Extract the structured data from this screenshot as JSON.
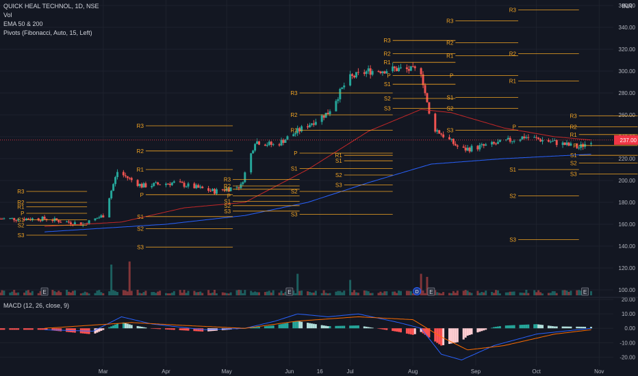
{
  "header": {
    "symbol_line": "QUICK HEAL TECHNOL, 1D, NSE",
    "indicators": [
      "Vol",
      "EMA 50 & 200",
      "Pivots (Fibonacci, Auto, 15, Left)"
    ],
    "currency": "INR"
  },
  "macd_label": "MACD (12, 26, close, 9)",
  "colors": {
    "background": "#131722",
    "up": "#26a69a",
    "down": "#ef5350",
    "ema50": "#c62828",
    "ema200": "#2962ff",
    "pivot": "#f5a623",
    "macd_line": "#2962ff",
    "signal_line": "#ff6d00",
    "price_tag": "#f23645"
  },
  "chart_data": {
    "type": "candlestick",
    "symbol": "QUICK HEAL TECHNOL",
    "interval": "1D",
    "exchange": "NSE",
    "current_price_label": "237.00",
    "ylim": [
      95,
      365
    ],
    "y_ticks": [
      "100.00",
      "120.00",
      "140.00",
      "160.00",
      "180.00",
      "200.00",
      "220.00",
      "240.00",
      "260.00",
      "280.00",
      "300.00",
      "320.00",
      "340.00",
      "360.00"
    ],
    "x_ticks": [
      "Mar",
      "Apr",
      "May",
      "Jun",
      "16",
      "Jul",
      "Aug",
      "Sep",
      "Oct",
      "Nov"
    ],
    "price_anchors": [
      {
        "date": "Feb 1",
        "close": 165
      },
      {
        "date": "Feb 20",
        "close": 160
      },
      {
        "date": "Mar 1",
        "close": 168
      },
      {
        "date": "Mar 8",
        "close": 208
      },
      {
        "date": "Mar 20",
        "close": 195
      },
      {
        "date": "Apr 5",
        "close": 198
      },
      {
        "date": "Apr 25",
        "close": 190
      },
      {
        "date": "May 8",
        "close": 195
      },
      {
        "date": "May 15",
        "close": 236
      },
      {
        "date": "May 25",
        "close": 232
      },
      {
        "date": "Jun 5",
        "close": 245
      },
      {
        "date": "Jun 20",
        "close": 262
      },
      {
        "date": "Jun 30",
        "close": 293
      },
      {
        "date": "Jul 10",
        "close": 300
      },
      {
        "date": "Jul 25",
        "close": 302
      },
      {
        "date": "Aug 5",
        "close": 300
      },
      {
        "date": "Aug 10",
        "close": 250
      },
      {
        "date": "Aug 25",
        "close": 228
      },
      {
        "date": "Sep 10",
        "close": 233
      },
      {
        "date": "Sep 25",
        "close": 240
      },
      {
        "date": "Oct 10",
        "close": 235
      },
      {
        "date": "Oct 22",
        "close": 230
      },
      {
        "date": "Oct 28",
        "close": 237
      }
    ],
    "ema50_anchors": [
      {
        "date": "Feb 1",
        "value": 158
      },
      {
        "date": "Mar 10",
        "value": 162
      },
      {
        "date": "Apr 10",
        "value": 175
      },
      {
        "date": "May 10",
        "value": 180
      },
      {
        "date": "Jun 10",
        "value": 210
      },
      {
        "date": "Jul 10",
        "value": 245
      },
      {
        "date": "Aug 5",
        "value": 265
      },
      {
        "date": "Aug 20",
        "value": 262
      },
      {
        "date": "Sep 15",
        "value": 248
      },
      {
        "date": "Oct 10",
        "value": 240
      },
      {
        "date": "Oct 28",
        "value": 237
      }
    ],
    "ema200_anchors": [
      {
        "date": "Feb 1",
        "value": 153
      },
      {
        "date": "Apr 1",
        "value": 160
      },
      {
        "date": "May 10",
        "value": 168
      },
      {
        "date": "Jun 10",
        "value": 180
      },
      {
        "date": "Jul 10",
        "value": 198
      },
      {
        "date": "Aug 10",
        "value": 215
      },
      {
        "date": "Sep 15",
        "value": 220
      },
      {
        "date": "Oct 28",
        "value": 224
      }
    ],
    "pivot_periods": [
      {
        "start": "Jan 23",
        "end": "Feb 22",
        "label_side": "left",
        "levels": {
          "R3": 190,
          "R2": 180,
          "R1": 176,
          "P": 170,
          "S1": 164,
          "S2": 159,
          "S3": 150
        }
      },
      {
        "start": "Mar 22",
        "end": "May 4",
        "label_side": "left",
        "levels": {
          "R3": 250,
          "R2": 227,
          "R1": 210,
          "P": 187,
          "S1": 167,
          "S2": 156,
          "S3": 139
        }
      },
      {
        "start": "May 4",
        "end": "Jun 6",
        "label_side": "left",
        "levels": {
          "R3": 201,
          "R2": 195,
          "R1": 192,
          "P": 186,
          "S1": 181,
          "S2": 177,
          "S3": 172
        }
      },
      {
        "start": "Jun 6",
        "end": "Jul 22",
        "label_side": "left",
        "levels": {
          "R3": 280,
          "R2": 260,
          "R1": 246,
          "P": 225,
          "S1": 211,
          "S2": 190,
          "S3": 169
        }
      },
      {
        "start": "Jun 28",
        "end": "Jul 22",
        "label_side": "left",
        "levels": {
          "R1": 223,
          "S1": 218,
          "S2": 205,
          "S3": 196
        }
      },
      {
        "start": "Jul 22",
        "end": "Aug 22",
        "label_side": "left",
        "levels": {
          "R3": 328,
          "R2": 316,
          "R1": 308,
          "P": 296,
          "S1": 288,
          "S2": 275,
          "S3": 266
        }
      },
      {
        "start": "Aug 22",
        "end": "Sep 22",
        "label_side": "left",
        "levels": {
          "R3": 346,
          "R2": 326,
          "R1": 314,
          "P": 296,
          "S1": 276,
          "S2": 266,
          "S3": 246
        }
      },
      {
        "start": "Sep 22",
        "end": "Oct 22",
        "label_side": "left",
        "levels": {
          "R3": 356,
          "R2": 316,
          "R1": 291,
          "P": 249,
          "S1": 210,
          "S2": 186,
          "S3": 146
        }
      },
      {
        "start": "Oct 22",
        "end": "Nov 20",
        "label_side": "left",
        "levels": {
          "R3": 259,
          "R2": 249,
          "R1": 242,
          "P": 232,
          "S1": 223,
          "S2": 216,
          "S3": 206
        }
      }
    ],
    "earnings_markers": [
      "Feb 1",
      "Jun 1",
      "Aug 10",
      "Oct 25"
    ],
    "dividend_marker": "Aug 3",
    "volume_spikes": [
      {
        "date": "Mar 5",
        "value": 0.5
      },
      {
        "date": "Mar 10",
        "value": 1.0
      },
      {
        "date": "Mar 14",
        "value": 0.55
      },
      {
        "date": "May 25",
        "value": 0.6
      },
      {
        "date": "Jun 1",
        "value": 0.45
      },
      {
        "date": "Jun 5",
        "value": 0.35
      },
      {
        "date": "Jul 1",
        "value": 0.25
      },
      {
        "date": "Aug 5",
        "value": 0.35
      },
      {
        "date": "Aug 8",
        "value": 0.3
      }
    ],
    "macd": {
      "label": "MACD (12, 26, close, 9)",
      "ylim": [
        -26,
        21
      ],
      "y_ticks": [
        "20.00",
        "10.00",
        "0.00",
        "-10.00",
        "-20.00"
      ],
      "macd_anchors": [
        {
          "date": "Feb 1",
          "value": -1
        },
        {
          "date": "Feb 25",
          "value": -2
        },
        {
          "date": "Mar 10",
          "value": 8
        },
        {
          "date": "Mar 25",
          "value": 3
        },
        {
          "date": "Apr 20",
          "value": -1
        },
        {
          "date": "May 10",
          "value": 0
        },
        {
          "date": "May 25",
          "value": 5
        },
        {
          "date": "Jun 5",
          "value": 10
        },
        {
          "date": "Jun 20",
          "value": 8
        },
        {
          "date": "Jul 5",
          "value": 10
        },
        {
          "date": "Jul 25",
          "value": 4
        },
        {
          "date": "Aug 5",
          "value": 0
        },
        {
          "date": "Aug 15",
          "value": -18
        },
        {
          "date": "Aug 25",
          "value": -22
        },
        {
          "date": "Sep 10",
          "value": -12
        },
        {
          "date": "Oct 1",
          "value": -4
        },
        {
          "date": "Oct 28",
          "value": 0
        }
      ],
      "signal_anchors": [
        {
          "date": "Feb 1",
          "value": 0
        },
        {
          "date": "Mar 15",
          "value": 4
        },
        {
          "date": "Apr 10",
          "value": 2
        },
        {
          "date": "May 10",
          "value": 0
        },
        {
          "date": "Jun 5",
          "value": 5
        },
        {
          "date": "Jul 5",
          "value": 8
        },
        {
          "date": "Aug 1",
          "value": 6
        },
        {
          "date": "Aug 15",
          "value": -6
        },
        {
          "date": "Aug 28",
          "value": -15
        },
        {
          "date": "Sep 15",
          "value": -12
        },
        {
          "date": "Oct 10",
          "value": -4
        },
        {
          "date": "Oct 28",
          "value": -1
        }
      ]
    }
  }
}
